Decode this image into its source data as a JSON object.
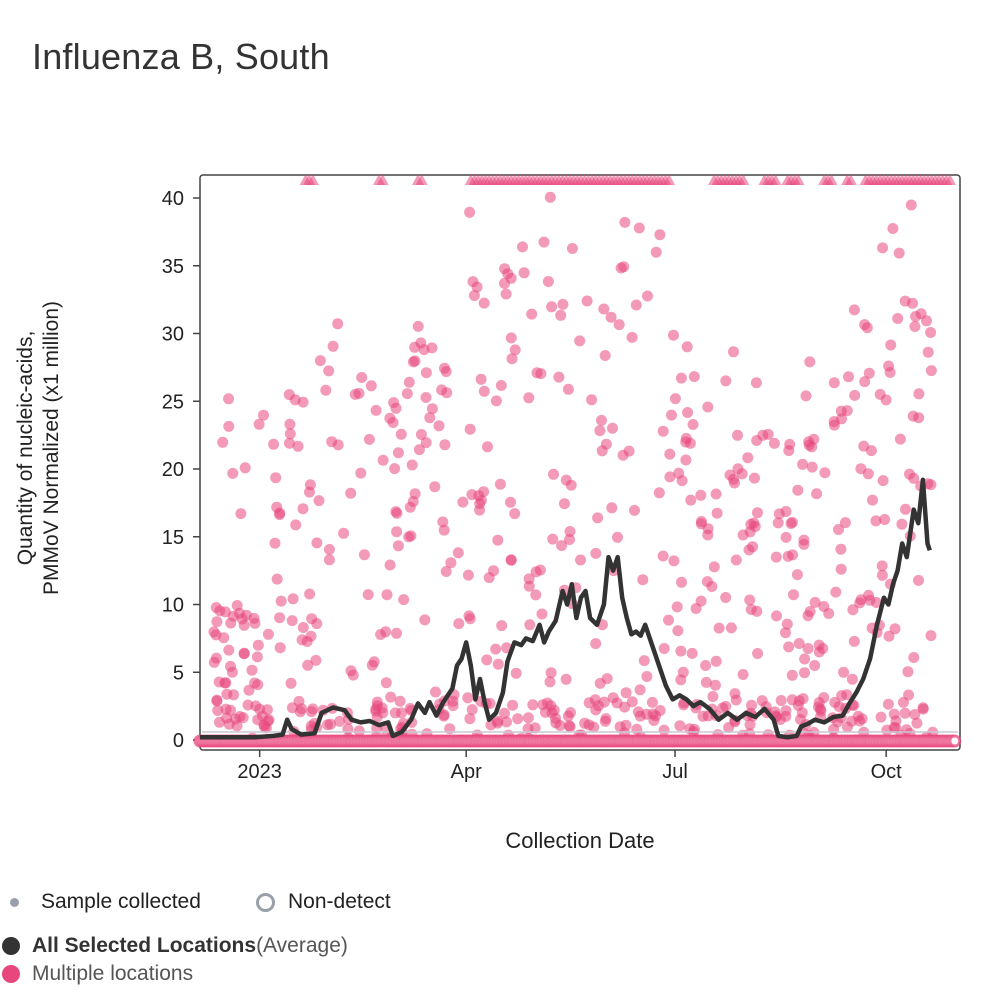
{
  "title": "Influenza B, South",
  "chart_data": {
    "type": "scatter+line",
    "title": "Influenza B, South",
    "xlabel": "Collection Date",
    "ylabel_line1": "Quantity of nucleic-acids,",
    "ylabel_line2": "PMMoV Normalized (x1 million)",
    "ylim": [
      0,
      41.5
    ],
    "yticks": [
      0,
      5,
      10,
      15,
      20,
      25,
      30,
      35,
      40
    ],
    "xrange_days": [
      0,
      329
    ],
    "x_unit": "days since 2022-12-06",
    "xticks": [
      {
        "day": 26,
        "label": "2023"
      },
      {
        "day": 116,
        "label": "Apr"
      },
      {
        "day": 207,
        "label": "Jul"
      },
      {
        "day": 299,
        "label": "Oct"
      }
    ],
    "series": [
      {
        "name": "All Selected Locations (Average)",
        "color": "#333333",
        "points": [
          [
            0,
            0.2
          ],
          [
            8,
            0.2
          ],
          [
            16,
            0.2
          ],
          [
            24,
            0.2
          ],
          [
            32,
            0.3
          ],
          [
            36,
            0.4
          ],
          [
            38,
            1.5
          ],
          [
            40,
            0.8
          ],
          [
            44,
            0.4
          ],
          [
            50,
            0.5
          ],
          [
            53,
            2
          ],
          [
            58,
            2.4
          ],
          [
            63,
            2.2
          ],
          [
            66,
            1.5
          ],
          [
            70,
            1.3
          ],
          [
            74,
            1.4
          ],
          [
            78,
            1.1
          ],
          [
            82,
            1.3
          ],
          [
            84,
            0.3
          ],
          [
            88,
            0.6
          ],
          [
            92,
            1.5
          ],
          [
            95,
            2.7
          ],
          [
            98,
            2
          ],
          [
            100,
            2.8
          ],
          [
            103,
            1.8
          ],
          [
            106,
            2.8
          ],
          [
            110,
            3.8
          ],
          [
            112,
            5.5
          ],
          [
            114,
            6
          ],
          [
            116,
            7.2
          ],
          [
            118,
            5.5
          ],
          [
            120,
            3
          ],
          [
            122,
            4.5
          ],
          [
            124,
            2.8
          ],
          [
            126,
            1.5
          ],
          [
            129,
            2
          ],
          [
            132,
            3.5
          ],
          [
            134,
            5.8
          ],
          [
            137,
            7.2
          ],
          [
            140,
            7
          ],
          [
            142,
            7.5
          ],
          [
            145,
            7.3
          ],
          [
            148,
            8.5
          ],
          [
            150,
            7.2
          ],
          [
            152,
            8
          ],
          [
            155,
            8.8
          ],
          [
            158,
            11
          ],
          [
            160,
            10
          ],
          [
            162,
            11.5
          ],
          [
            164,
            9
          ],
          [
            166,
            10.5
          ],
          [
            168,
            11
          ],
          [
            170,
            9
          ],
          [
            173,
            8.5
          ],
          [
            176,
            10
          ],
          [
            178,
            13.5
          ],
          [
            180,
            12.5
          ],
          [
            182,
            13.5
          ],
          [
            184,
            10.5
          ],
          [
            186,
            9
          ],
          [
            188,
            7.8
          ],
          [
            190,
            8
          ],
          [
            192,
            7.7
          ],
          [
            194,
            8.5
          ],
          [
            196,
            7.5
          ],
          [
            198,
            6.5
          ],
          [
            200,
            5.5
          ],
          [
            203,
            4
          ],
          [
            206,
            3
          ],
          [
            209,
            3.3
          ],
          [
            212,
            3
          ],
          [
            215,
            2.5
          ],
          [
            218,
            2.8
          ],
          [
            222,
            2.3
          ],
          [
            226,
            1.5
          ],
          [
            230,
            2
          ],
          [
            234,
            1.5
          ],
          [
            238,
            2
          ],
          [
            242,
            1.7
          ],
          [
            246,
            2.3
          ],
          [
            250,
            1.5
          ],
          [
            252,
            0.3
          ],
          [
            256,
            0.2
          ],
          [
            260,
            0.3
          ],
          [
            262,
            1
          ],
          [
            265,
            1.2
          ],
          [
            268,
            1.5
          ],
          [
            272,
            1.3
          ],
          [
            276,
            1.7
          ],
          [
            280,
            1.8
          ],
          [
            283,
            2.7
          ],
          [
            286,
            3.5
          ],
          [
            289,
            4.5
          ],
          [
            292,
            6
          ],
          [
            295,
            8.5
          ],
          [
            298,
            10.5
          ],
          [
            300,
            10
          ],
          [
            302,
            11.5
          ],
          [
            304,
            12.5
          ],
          [
            306,
            14.5
          ],
          [
            308,
            13.5
          ],
          [
            311,
            17
          ],
          [
            313,
            16
          ],
          [
            315,
            19.2
          ],
          [
            317,
            14.5
          ],
          [
            318,
            14
          ]
        ]
      },
      {
        "name": "Multiple locations",
        "color": "#e8477e",
        "marker": "circle"
      }
    ],
    "note": "Scatter points for 'Multiple locations' are dense; triangles at top mark values above the axis range; open circles along zero mark non-detects."
  },
  "legend": {
    "sample_collected": "Sample collected",
    "non_detect": "Non-detect",
    "all_selected_bold": "All Selected Locations",
    "all_selected_suffix": " (Average)",
    "multiple_locations": "Multiple locations"
  },
  "colors": {
    "line": "#333333",
    "points": "#e8477e",
    "axis": "#444444",
    "legend_gray": "#9aa0aa"
  }
}
